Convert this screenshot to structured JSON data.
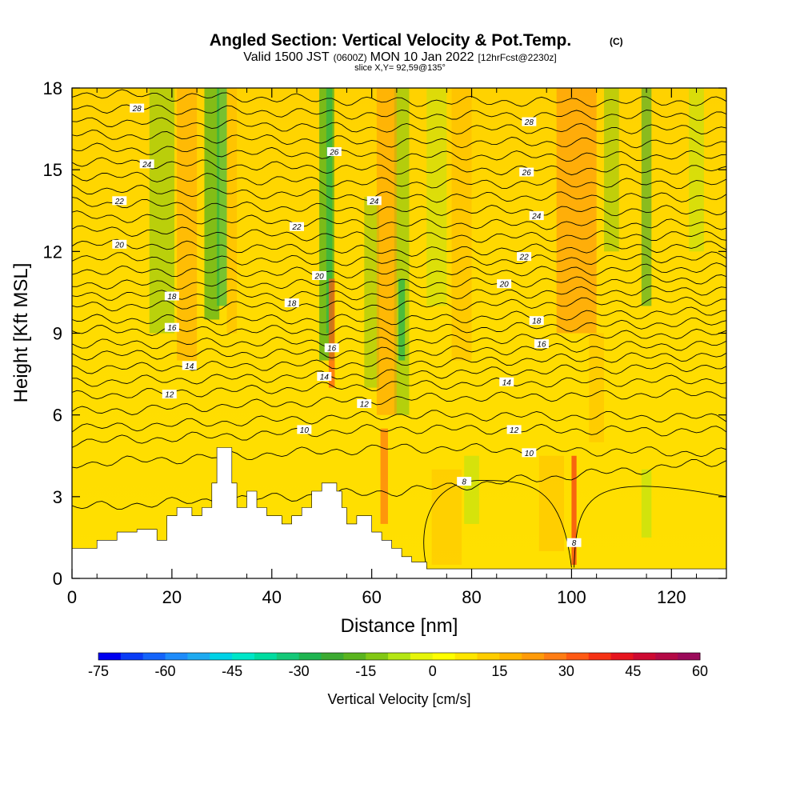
{
  "header": {
    "title": "Angled Section: Vertical Velocity & Pot.Temp.",
    "title_mark": "(C)",
    "subtitle_a": "Valid 1500 JST",
    "subtitle_b": "(0600Z)",
    "subtitle_c": "MON 10 Jan 2022",
    "subtitle_d": "[12hrFcst@2230z]",
    "slice": "slice X,Y= 92,59@135°"
  },
  "chart_data": {
    "type": "heatmap",
    "xlabel": "Distance [nm]",
    "ylabel": "Height [Kft MSL]",
    "xlim": [
      0,
      131
    ],
    "ylim": [
      0,
      18
    ],
    "x_ticks": [
      0,
      20,
      40,
      60,
      80,
      100,
      120
    ],
    "y_ticks": [
      0,
      3,
      6,
      9,
      12,
      15,
      18
    ],
    "colorbar": {
      "label": "Vertical Velocity [cm/s]",
      "ticks": [
        -75,
        -60,
        -45,
        -30,
        -15,
        0,
        15,
        30,
        45,
        60
      ],
      "range": [
        -75,
        60
      ],
      "step": 5,
      "colors": [
        "#0000f0",
        "#0a3cf6",
        "#1464fa",
        "#1e8cfa",
        "#1eaaf0",
        "#00d2e6",
        "#00e6c8",
        "#00dca0",
        "#14c878",
        "#1eb450",
        "#3caa32",
        "#5ab41e",
        "#82c814",
        "#b4e614",
        "#e6f50a",
        "#ffff00",
        "#ffe600",
        "#ffcd00",
        "#ffb400",
        "#ff9b0a",
        "#ff7d14",
        "#ff5a14",
        "#f53214",
        "#e6141e",
        "#cd0a32",
        "#b40a46",
        "#9b0a5a",
        "#820a6e"
      ]
    },
    "contour_field": "Potential Temperature (C)",
    "contour_levels": [
      8,
      10,
      12,
      14,
      16,
      18,
      20,
      22,
      24,
      26,
      28
    ],
    "contour_labels": [
      {
        "x": 13.0,
        "y": 17.25,
        "label": "28"
      },
      {
        "x": 91.5,
        "y": 16.75,
        "label": "28"
      },
      {
        "x": 52.5,
        "y": 15.65,
        "label": "26"
      },
      {
        "x": 91.0,
        "y": 14.9,
        "label": "26"
      },
      {
        "x": 15.0,
        "y": 15.2,
        "label": "24"
      },
      {
        "x": 60.5,
        "y": 13.85,
        "label": "24"
      },
      {
        "x": 93.0,
        "y": 13.3,
        "label": "24"
      },
      {
        "x": 9.5,
        "y": 13.85,
        "label": "22"
      },
      {
        "x": 45.0,
        "y": 12.9,
        "label": "22"
      },
      {
        "x": 90.5,
        "y": 11.8,
        "label": "22"
      },
      {
        "x": 9.5,
        "y": 12.25,
        "label": "20"
      },
      {
        "x": 49.5,
        "y": 11.1,
        "label": "20"
      },
      {
        "x": 86.5,
        "y": 10.8,
        "label": "20"
      },
      {
        "x": 20.0,
        "y": 10.35,
        "label": "18"
      },
      {
        "x": 44.0,
        "y": 10.1,
        "label": "18"
      },
      {
        "x": 93.0,
        "y": 9.45,
        "label": "18"
      },
      {
        "x": 20.0,
        "y": 9.2,
        "label": "16"
      },
      {
        "x": 52.0,
        "y": 8.45,
        "label": "16"
      },
      {
        "x": 94.0,
        "y": 8.6,
        "label": "16"
      },
      {
        "x": 23.5,
        "y": 7.8,
        "label": "14"
      },
      {
        "x": 50.5,
        "y": 7.4,
        "label": "14"
      },
      {
        "x": 87.0,
        "y": 7.2,
        "label": "14"
      },
      {
        "x": 19.5,
        "y": 6.75,
        "label": "12"
      },
      {
        "x": 58.5,
        "y": 6.4,
        "label": "12"
      },
      {
        "x": 88.5,
        "y": 5.45,
        "label": "12"
      },
      {
        "x": 46.5,
        "y": 5.45,
        "label": "10"
      },
      {
        "x": 91.5,
        "y": 4.6,
        "label": "10"
      },
      {
        "x": 78.5,
        "y": 3.55,
        "label": "8"
      },
      {
        "x": 100.5,
        "y": 1.3,
        "label": "8"
      }
    ]
  }
}
